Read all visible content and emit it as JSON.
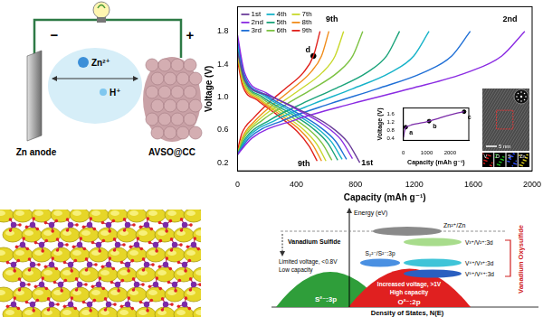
{
  "schematic": {
    "negative": "−",
    "positive": "+",
    "ions": [
      "Zn²⁺",
      "H⁺"
    ],
    "anode": "Zn anode",
    "cathode": "AVSO@CC"
  },
  "chart_data": {
    "type": "line",
    "x_label": "Capacity (mAh g⁻¹)",
    "y_label": "Voltage (V)",
    "xlim": [
      0,
      2000
    ],
    "xticks": [
      0,
      400,
      800,
      1200,
      1600,
      2000
    ],
    "ylim": [
      0.1,
      2.1
    ],
    "yticks": [
      0.2,
      0.6,
      {
        "value": 1,
        "label": "1.0"
      },
      1.4,
      1.8
    ],
    "grid": false,
    "legend": "upper left",
    "series": [
      {
        "name": "1st",
        "color": "#6a3d9a",
        "x": [
          0,
          50,
          208,
          415,
          623,
          747,
          830
        ],
        "values": [
          1.55,
          1.2,
          1.02,
          0.85,
          0.65,
          0.45,
          0.2
        ]
      },
      {
        "name": "2nd",
        "color": "#8a2be2",
        "x": [
          0,
          47,
          195,
          390,
          585,
          702,
          780,
          null,
          0,
          98,
          390,
          780,
          1170,
          1560,
          1794,
          1950
        ],
        "values": [
          1.75,
          1.3,
          1.05,
          0.86,
          0.66,
          0.48,
          0.25,
          null,
          0.3,
          0.5,
          0.72,
          0.92,
          1.1,
          1.3,
          1.5,
          1.8
        ]
      },
      {
        "name": "3rd",
        "color": "#1f6fd6",
        "x": [
          0,
          44,
          185,
          370,
          555,
          666,
          740,
          null,
          0,
          79,
          316,
          632,
          948,
          1264,
          1454,
          1580
        ],
        "values": [
          1.7,
          1.28,
          1.03,
          0.84,
          0.64,
          0.46,
          0.24,
          null,
          0.3,
          0.5,
          0.72,
          0.92,
          1.1,
          1.3,
          1.5,
          1.8
        ]
      },
      {
        "name": "4th",
        "color": "#17b3c9",
        "x": [
          0,
          43,
          178,
          355,
          533,
          639,
          710,
          null,
          0,
          65,
          260,
          520,
          780,
          1040,
          1196,
          1300
        ],
        "values": [
          1.65,
          1.26,
          1.02,
          0.83,
          0.63,
          0.45,
          0.24,
          null,
          0.3,
          0.5,
          0.72,
          0.92,
          1.1,
          1.3,
          1.5,
          1.8
        ]
      },
      {
        "name": "5th",
        "color": "#1aa37a",
        "x": [
          0,
          41,
          170,
          340,
          510,
          612,
          680,
          null,
          0,
          55,
          220,
          440,
          660,
          880,
          1012,
          1100
        ],
        "values": [
          1.6,
          1.24,
          1.0,
          0.82,
          0.62,
          0.44,
          0.23,
          null,
          0.3,
          0.5,
          0.72,
          0.92,
          1.1,
          1.3,
          1.5,
          1.8
        ]
      },
      {
        "name": "6th",
        "color": "#7cc242",
        "x": [
          0,
          38,
          160,
          320,
          480,
          576,
          640,
          null,
          0,
          43,
          170,
          340,
          510,
          680,
          782,
          850
        ],
        "values": [
          1.55,
          1.22,
          0.99,
          0.81,
          0.61,
          0.43,
          0.23,
          null,
          0.3,
          0.5,
          0.72,
          0.92,
          1.1,
          1.3,
          1.5,
          1.8
        ]
      },
      {
        "name": "7th",
        "color": "#c8d82a",
        "x": [
          0,
          36,
          150,
          300,
          450,
          540,
          600,
          null,
          0,
          36,
          144,
          288,
          432,
          576,
          662,
          720
        ],
        "values": [
          1.52,
          1.2,
          0.98,
          0.8,
          0.6,
          0.42,
          0.22,
          null,
          0.3,
          0.5,
          0.72,
          0.92,
          1.1,
          1.3,
          1.5,
          1.8
        ]
      },
      {
        "name": "8th",
        "color": "#f08c1a",
        "x": [
          0,
          34,
          143,
          285,
          428,
          513,
          570,
          null,
          0,
          31,
          124,
          248,
          372,
          496,
          570,
          620
        ],
        "values": [
          1.5,
          1.18,
          0.97,
          0.79,
          0.59,
          0.41,
          0.22,
          null,
          0.3,
          0.5,
          0.72,
          0.92,
          1.1,
          1.3,
          1.5,
          1.8
        ]
      },
      {
        "name": "9th",
        "color": "#e0201b",
        "x": [
          0,
          32,
          135,
          270,
          405,
          486,
          540,
          null,
          0,
          28,
          112,
          224,
          336,
          448,
          515,
          560
        ],
        "values": [
          1.45,
          1.15,
          0.96,
          0.78,
          0.58,
          0.4,
          0.22,
          null,
          0.35,
          0.55,
          0.75,
          0.95,
          1.12,
          1.3,
          1.5,
          1.8
        ]
      }
    ],
    "annotations": [
      {
        "text": "2nd",
        "x": 1850,
        "y": 1.95
      },
      {
        "text": "9th",
        "x": 640,
        "y": 1.95
      },
      {
        "text": "9th",
        "x": 450,
        "y": 0.19
      },
      {
        "text": "1st",
        "x": 880,
        "y": 0.2
      }
    ],
    "markers": {
      "x": [
        515
      ],
      "y": [
        1.5
      ],
      "labels": [
        "d"
      ]
    },
    "inset": {
      "type": "line",
      "x_label": "Capacity (mAh g⁻¹)",
      "y_label": "Voltage (V)",
      "xlim": [
        0,
        2800
      ],
      "xticks": [
        0,
        1000,
        2000
      ],
      "ylim": [
        0.3,
        1.9
      ],
      "yticks": [
        0.4,
        0.8,
        1.2,
        1.6
      ],
      "color": "#7a2aa8",
      "x": [
        0,
        40,
        100,
        200,
        400,
        700,
        1000,
        1100,
        1400,
        1800,
        2200,
        2600
      ],
      "values": [
        0.45,
        0.7,
        0.95,
        1.0,
        1.08,
        1.15,
        1.22,
        1.25,
        1.35,
        1.5,
        1.62,
        1.72
      ],
      "markers": {
        "x": [
          100,
          1100,
          2600
        ],
        "y": [
          0.95,
          1.25,
          1.72
        ],
        "labels": [
          "a",
          "b",
          "c"
        ]
      }
    }
  },
  "tem": {
    "scale_bar": "5 nm",
    "maps": [
      {
        "element": "V",
        "color": "#e02020"
      },
      {
        "element": "O",
        "color": "#20c020"
      },
      {
        "element": "S",
        "color": "#3050ff"
      },
      {
        "element": "Zn",
        "color": "#e0d020"
      }
    ]
  },
  "energy_diagram": {
    "y_label": "Energy (eV)",
    "x_label": "Density of States, N(E)",
    "reference": "Zn²⁺/Zn",
    "left_material": "Vanadium Sulfide",
    "left_notes": [
      "Limited voltage, <0.8V",
      "Low capacity"
    ],
    "right_material": "Vanadium Oxysulfide",
    "right_notes": [
      "Increased voltage, >1V",
      "High capacity"
    ],
    "levels": [
      {
        "label": "V³⁺/V²⁺:3d",
        "color": "#a8dc8c"
      },
      {
        "label": "V⁴⁺/V³⁺:3d",
        "color": "#3fc4d8"
      },
      {
        "label": "V⁵⁺/V⁴⁺:3d",
        "color": "#2a5fc0"
      },
      {
        "label": "S₂²⁻/S²⁻:3p",
        "color": "#4a90e2"
      }
    ],
    "bands": [
      {
        "label": "S²⁻:3p",
        "color": "#2f9e3a"
      },
      {
        "label": "O²⁻:2p",
        "color": "#e02020"
      }
    ]
  }
}
